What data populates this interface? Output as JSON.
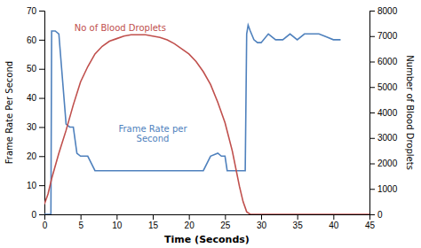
{
  "chart_data": {
    "type": "line",
    "xlabel": "Time (Seconds)",
    "ylabel": "Frame Rate Per Second",
    "y2label": "Number of Blood Droplets",
    "xlim": [
      0,
      45
    ],
    "ylim": [
      0,
      70
    ],
    "y2lim": [
      0,
      8000
    ],
    "xticks": [
      0,
      5,
      10,
      15,
      20,
      25,
      30,
      35,
      40,
      45
    ],
    "yticks": [
      0,
      10,
      20,
      30,
      40,
      50,
      60,
      70
    ],
    "y2ticks": [
      0,
      1000,
      2000,
      3000,
      4000,
      5000,
      6000,
      7000,
      8000
    ],
    "grid": false,
    "series": [
      {
        "color": "#4f81bd",
        "x": [
          0,
          0.9,
          1.0,
          1.5,
          2.0,
          3.0,
          3.5,
          4.0,
          4.5,
          5.0,
          6.0,
          7.0,
          8.0,
          9.0,
          10.0,
          11.0,
          12.0,
          13.0,
          14.0,
          15.0,
          16.0,
          17.0,
          18.0,
          19.0,
          20.0,
          21.0,
          22.0,
          23.0,
          24.0,
          24.5,
          25.0,
          25.3,
          25.6,
          26.0,
          27.0,
          27.8,
          28.0,
          28.2,
          28.5,
          29.0,
          29.5,
          30.0,
          31.0,
          32.0,
          33.0,
          34.0,
          35.0,
          36.0,
          37.0,
          38.0,
          39.0,
          40.0,
          41.0
        ],
        "values": [
          0,
          0,
          63,
          63,
          62,
          31,
          30,
          30,
          21,
          20,
          20,
          15,
          15,
          15,
          15,
          15,
          15,
          15,
          15,
          15,
          15,
          15,
          15,
          15,
          15,
          15,
          15,
          20,
          21,
          20,
          20,
          15,
          15,
          15,
          15,
          15,
          62,
          65,
          63,
          60,
          59,
          59,
          62,
          60,
          60,
          62,
          60,
          62,
          62,
          62,
          61,
          60,
          60
        ]
      },
      {
        "color": "#c0504d",
        "axis": "y2",
        "x": [
          0,
          0.5,
          1.0,
          2.0,
          3.0,
          4.0,
          5.0,
          6.0,
          7.0,
          8.0,
          9.0,
          10.0,
          11.0,
          12.0,
          13.0,
          13.5,
          14.0,
          15.0,
          16.0,
          17.0,
          18.0,
          19.0,
          20.0,
          21.0,
          22.0,
          23.0,
          24.0,
          25.0,
          26.0,
          27.0,
          27.5,
          28.0,
          28.5,
          29.0,
          30.0,
          35.0,
          40.0,
          45.0
        ],
        "values": [
          400,
          800,
          1400,
          2400,
          3300,
          4300,
          5200,
          5800,
          6300,
          6600,
          6800,
          6900,
          7000,
          7050,
          7050,
          7050,
          7050,
          7000,
          6950,
          6850,
          6700,
          6500,
          6300,
          6000,
          5600,
          5100,
          4400,
          3600,
          2500,
          1100,
          500,
          100,
          0,
          0,
          0,
          0,
          0,
          0
        ]
      }
    ],
    "annotations": [
      {
        "text": "Frame Rate per\nSecond",
        "x": 15,
        "y": 24,
        "color": "#4f81bd"
      },
      {
        "text": "No of Blood Droplets",
        "x": 10.5,
        "y": 62,
        "color": "#c0504d"
      }
    ]
  }
}
